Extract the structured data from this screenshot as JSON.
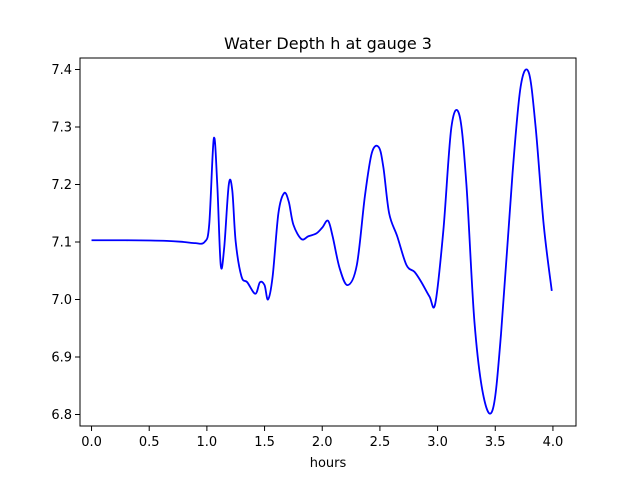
{
  "chart_data": {
    "type": "line",
    "title": "Water Depth h at gauge 3",
    "xlabel": "hours",
    "ylabel": "",
    "xlim": [
      -0.1,
      4.2
    ],
    "ylim": [
      6.78,
      7.42
    ],
    "grid": false,
    "x_ticks": [
      0.0,
      0.5,
      1.0,
      1.5,
      2.0,
      2.5,
      3.0,
      3.5,
      4.0
    ],
    "x_tick_labels": [
      "0.0",
      "0.5",
      "1.0",
      "1.5",
      "2.0",
      "2.5",
      "3.0",
      "3.5",
      "4.0"
    ],
    "y_ticks": [
      6.8,
      6.9,
      7.0,
      7.1,
      7.2,
      7.3,
      7.4
    ],
    "y_tick_labels": [
      "6.8",
      "6.9",
      "7.0",
      "7.1",
      "7.2",
      "7.3",
      "7.4"
    ],
    "series": [
      {
        "color": "#0000ff",
        "x": [
          0.0,
          0.3,
          0.65,
          0.8,
          0.9,
          0.98,
          1.02,
          1.06,
          1.09,
          1.12,
          1.15,
          1.19,
          1.22,
          1.25,
          1.3,
          1.35,
          1.42,
          1.46,
          1.5,
          1.53,
          1.57,
          1.62,
          1.67,
          1.71,
          1.75,
          1.82,
          1.88,
          1.95,
          2.0,
          2.05,
          2.09,
          2.15,
          2.22,
          2.3,
          2.37,
          2.43,
          2.49,
          2.53,
          2.58,
          2.65,
          2.73,
          2.8,
          2.86,
          2.93,
          2.98,
          3.05,
          3.12,
          3.19,
          3.25,
          3.32,
          3.4,
          3.48,
          3.55,
          3.65,
          3.72,
          3.79,
          3.85,
          3.92,
          3.99
        ],
        "y": [
          7.103,
          7.103,
          7.102,
          7.1,
          7.098,
          7.1,
          7.13,
          7.28,
          7.2,
          7.06,
          7.09,
          7.2,
          7.19,
          7.1,
          7.04,
          7.03,
          7.01,
          7.03,
          7.025,
          7.0,
          7.04,
          7.15,
          7.185,
          7.17,
          7.13,
          7.105,
          7.11,
          7.115,
          7.125,
          7.137,
          7.11,
          7.055,
          7.025,
          7.06,
          7.18,
          7.255,
          7.265,
          7.23,
          7.15,
          7.11,
          7.06,
          7.048,
          7.03,
          7.005,
          6.993,
          7.12,
          7.3,
          7.32,
          7.2,
          6.96,
          6.83,
          6.81,
          6.94,
          7.22,
          7.37,
          7.395,
          7.3,
          7.13,
          7.015
        ]
      }
    ]
  }
}
